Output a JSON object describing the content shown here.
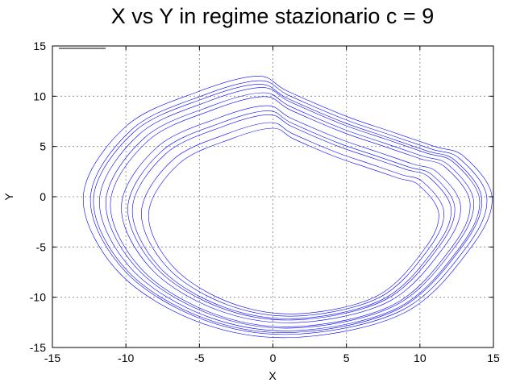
{
  "chart_data": {
    "type": "line",
    "title": "X vs Y in regime stazionario c = 9",
    "xlabel": "X",
    "ylabel": "Y",
    "xlim": [
      -15,
      15
    ],
    "ylim": [
      -15,
      15
    ],
    "xticks": [
      -15,
      -10,
      -5,
      0,
      5,
      10,
      15
    ],
    "yticks": [
      -15,
      -10,
      -5,
      0,
      5,
      10,
      15
    ],
    "grid": true,
    "legend": "top-left",
    "series_color": "#0000ff",
    "series": [
      {
        "name": "",
        "description_points": [
          [
            -1,
            12
          ],
          [
            -10,
            7
          ],
          [
            -12.9,
            0
          ],
          [
            -10.5,
            -7.5
          ],
          [
            -5,
            -12.5
          ],
          [
            1.5,
            -14
          ],
          [
            9,
            -11.5
          ],
          [
            13.5,
            -5
          ],
          [
            14.9,
            0
          ],
          [
            13,
            4
          ],
          [
            11,
            5
          ],
          [
            5,
            8
          ],
          [
            -1,
            12
          ]
        ],
        "x": [
          -1.0,
          -5.0,
          -10.0,
          -12.9,
          -10.5,
          -5.0,
          1.5,
          9.0,
          13.5,
          14.9,
          13.0,
          11.0,
          8.0,
          5.0,
          1.0,
          -1.0
        ],
        "y": [
          12.0,
          10.5,
          7.0,
          0.0,
          -7.5,
          -12.5,
          -14.0,
          -11.5,
          -5.0,
          0.0,
          4.0,
          5.0,
          6.5,
          8.0,
          10.5,
          12.0
        ]
      }
    ]
  }
}
